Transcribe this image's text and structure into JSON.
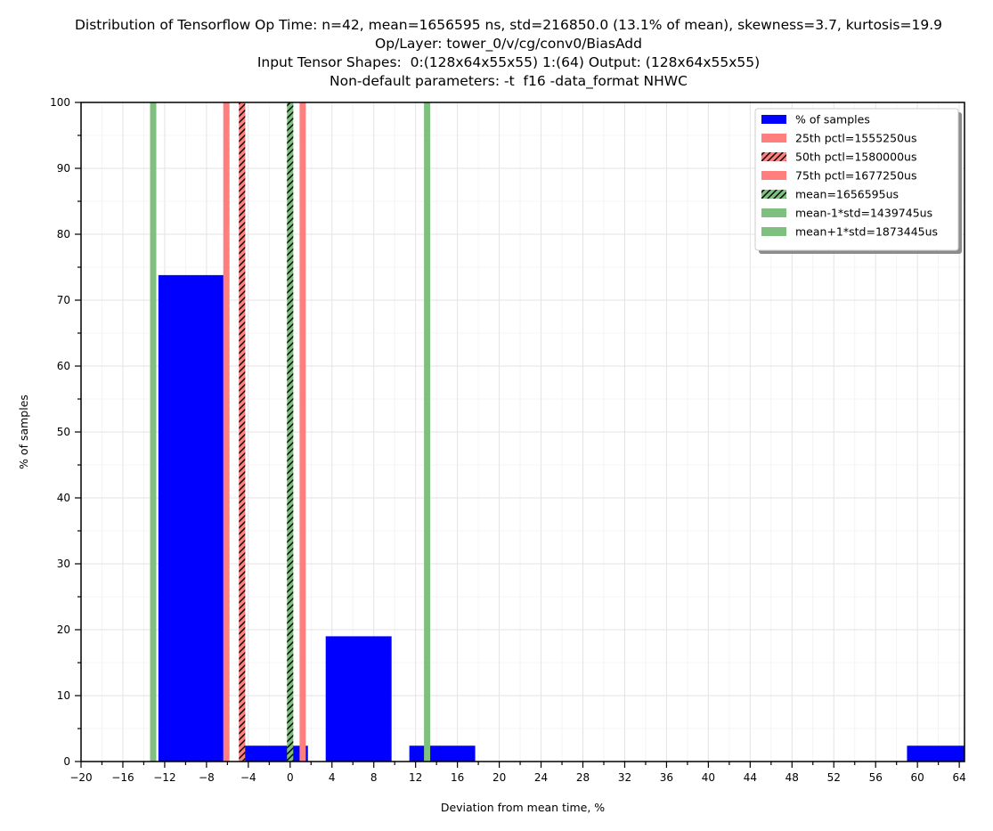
{
  "chart_data": {
    "type": "bar",
    "title_lines": [
      "Distribution of Tensorflow Op Time: n=42, mean=1656595 ns, std=216850.0 (13.1% of mean), skewness=3.7, kurtosis=19.9",
      "Op/Layer: tower_0/v/cg/conv0/BiasAdd",
      "Input Tensor Shapes:  0:(128x64x55x55) 1:(64) Output: (128x64x55x55)",
      "Non-default parameters: -t  f16 -data_format NHWC"
    ],
    "xlabel": "Deviation from mean time, %",
    "ylabel": "% of samples",
    "xlim": [
      -20,
      64.5
    ],
    "ylim": [
      0,
      100
    ],
    "xticks": [
      -20,
      -16,
      -12,
      -8,
      -4,
      0,
      4,
      8,
      12,
      16,
      20,
      24,
      28,
      32,
      36,
      40,
      44,
      48,
      52,
      56,
      60,
      64
    ],
    "xtick_labels": [
      "−20",
      "−16",
      "−12",
      "−8",
      "−4",
      "0",
      "4",
      "8",
      "12",
      "16",
      "20",
      "24",
      "28",
      "32",
      "36",
      "40",
      "44",
      "48",
      "52",
      "56",
      "60",
      "64"
    ],
    "yticks": [
      0,
      10,
      20,
      30,
      40,
      50,
      60,
      70,
      80,
      90,
      100
    ],
    "ytick_labels": [
      "0",
      "10",
      "20",
      "30",
      "40",
      "50",
      "60",
      "70",
      "80",
      "90",
      "100"
    ],
    "grid": true,
    "legend_position": "top-right",
    "bars": [
      {
        "x_start": -12.6,
        "x_end": -6.3,
        "value": 73.8
      },
      {
        "x_start": -4.6,
        "x_end": 1.7,
        "value": 2.4
      },
      {
        "x_start": 3.4,
        "x_end": 9.7,
        "value": 19.0
      },
      {
        "x_start": 11.4,
        "x_end": 17.7,
        "value": 2.4
      },
      {
        "x_start": 59.0,
        "x_end": 64.5,
        "value": 2.4
      }
    ],
    "bar_color": "#0000ff",
    "vlines": [
      {
        "x": -13.1,
        "color": "#7fbf7f",
        "hatched": false
      },
      {
        "x": -6.1,
        "color": "#ff7f7f",
        "hatched": false
      },
      {
        "x": -4.6,
        "color": "#ff7f7f",
        "hatched": true
      },
      {
        "x": 0.0,
        "color": "#7fbf7f",
        "hatched": true
      },
      {
        "x": 1.2,
        "color": "#ff7f7f",
        "hatched": false
      },
      {
        "x": 13.1,
        "color": "#7fbf7f",
        "hatched": false
      }
    ],
    "legend": [
      {
        "label": "% of samples",
        "color": "#0000ff",
        "hatched": false
      },
      {
        "label": "25th pctl=1555250us",
        "color": "#ff7f7f",
        "hatched": false
      },
      {
        "label": "50th pctl=1580000us",
        "color": "#ff7f7f",
        "hatched": true
      },
      {
        "label": "75th pctl=1677250us",
        "color": "#ff7f7f",
        "hatched": false
      },
      {
        "label": "mean=1656595us",
        "color": "#7fbf7f",
        "hatched": true
      },
      {
        "label": "mean-1*std=1439745us",
        "color": "#7fbf7f",
        "hatched": false
      },
      {
        "label": "mean+1*std=1873445us",
        "color": "#7fbf7f",
        "hatched": false
      }
    ]
  }
}
